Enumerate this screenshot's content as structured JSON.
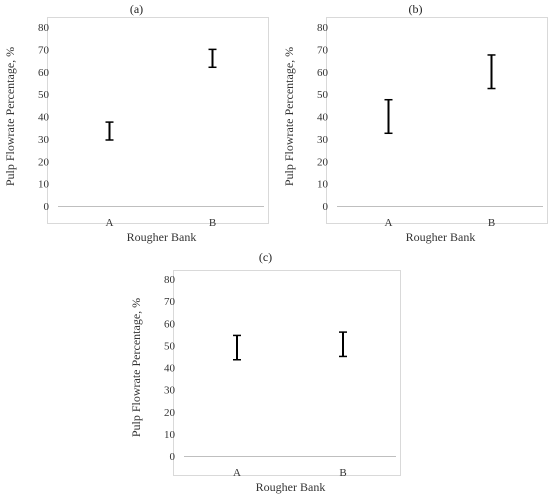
{
  "chart_data": [
    {
      "type": "errorbar",
      "panel_label": "(a)",
      "xlabel": "Rougher Bank",
      "ylabel": "Pulp Flowrate Percentage, %",
      "ylim": [
        0,
        80
      ],
      "yticks": [
        0,
        10,
        20,
        30,
        40,
        50,
        60,
        70,
        80
      ],
      "categories": [
        "A",
        "B"
      ],
      "intervals": [
        {
          "category": "A",
          "low": 29.5,
          "high": 37.5
        },
        {
          "category": "B",
          "low": 62,
          "high": 70
        }
      ],
      "grid": false,
      "legend": "none"
    },
    {
      "type": "errorbar",
      "panel_label": "(b)",
      "xlabel": "Rougher Bank",
      "ylabel": "Pulp Flowrate Percentage, %",
      "ylim": [
        0,
        80
      ],
      "yticks": [
        0,
        10,
        20,
        30,
        40,
        50,
        60,
        70,
        80
      ],
      "categories": [
        "A",
        "B"
      ],
      "intervals": [
        {
          "category": "A",
          "low": 32.5,
          "high": 47.5
        },
        {
          "category": "B",
          "low": 52.5,
          "high": 67.5
        }
      ],
      "grid": false,
      "legend": "none"
    },
    {
      "type": "errorbar",
      "panel_label": "(c)",
      "xlabel": "Rougher Bank",
      "ylabel": "Pulp Flowrate Percentage, %",
      "ylim": [
        0,
        80
      ],
      "yticks": [
        0,
        10,
        20,
        30,
        40,
        50,
        60,
        70,
        80
      ],
      "categories": [
        "A",
        "B"
      ],
      "intervals": [
        {
          "category": "A",
          "low": 43.5,
          "high": 54.5
        },
        {
          "category": "B",
          "low": 45,
          "high": 56
        }
      ],
      "grid": false,
      "legend": "none"
    }
  ]
}
